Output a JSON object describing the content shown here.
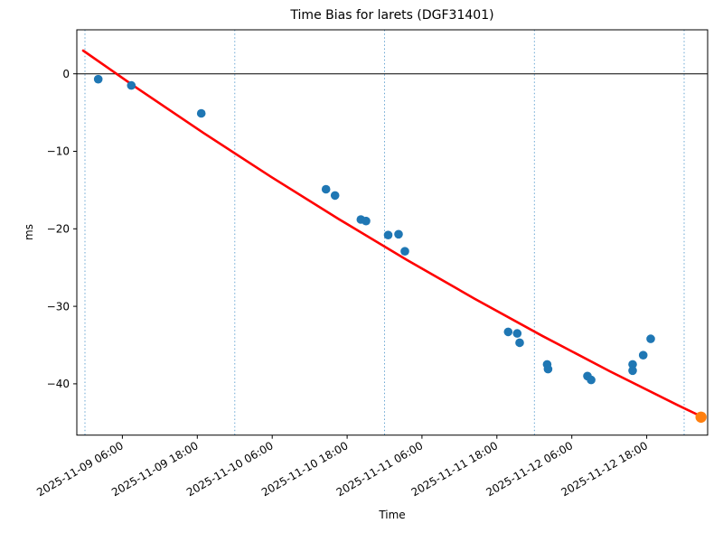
{
  "chart_data": {
    "type": "scatter",
    "title": "Time Bias for larets (DGF31401)",
    "xlabel": "Time",
    "ylabel": "ms",
    "grid": "vertical dotted lines at each midnight",
    "legend": "none",
    "colors": {
      "points": "#1f77b4",
      "latest_point": "#ff7f0e",
      "fit_line": "#ff0000",
      "gridline": "#5b9ecf",
      "zero_line": "#000000",
      "spine": "#000000"
    },
    "time_origin": "2025-11-09 00:00",
    "xlim_hours": [
      -1.3,
      99.75
    ],
    "ylim": [
      -46.6,
      5.7
    ],
    "zero_line_value": 0,
    "gridlines_hours": [
      0,
      24,
      48,
      72,
      96
    ],
    "x_ticks": [
      {
        "hours": 6,
        "label": "2025-11-09 06:00"
      },
      {
        "hours": 18,
        "label": "2025-11-09 18:00"
      },
      {
        "hours": 30,
        "label": "2025-11-10 06:00"
      },
      {
        "hours": 42,
        "label": "2025-11-10 18:00"
      },
      {
        "hours": 54,
        "label": "2025-11-11 06:00"
      },
      {
        "hours": 66,
        "label": "2025-11-11 18:00"
      },
      {
        "hours": 78,
        "label": "2025-11-12 06:00"
      },
      {
        "hours": 90,
        "label": "2025-11-12 18:00"
      }
    ],
    "y_ticks": [
      {
        "value": 0,
        "label": "0"
      },
      {
        "value": -10,
        "label": "−10"
      },
      {
        "value": -20,
        "label": "−20"
      },
      {
        "value": -30,
        "label": "−30"
      },
      {
        "value": -40,
        "label": "−40"
      }
    ],
    "points": [
      {
        "time": "2025-11-09 02:10",
        "t": 2.13,
        "ms": -0.7
      },
      {
        "time": "2025-11-09 07:25",
        "t": 7.43,
        "ms": -1.5
      },
      {
        "time": "2025-11-09 18:40",
        "t": 18.63,
        "ms": -5.1
      },
      {
        "time": "2025-11-10 14:40",
        "t": 38.62,
        "ms": -14.9
      },
      {
        "time": "2025-11-10 16:05",
        "t": 40.06,
        "ms": -15.7
      },
      {
        "time": "2025-11-10 20:15",
        "t": 44.21,
        "ms": -18.8
      },
      {
        "time": "2025-11-10 21:00",
        "t": 45.03,
        "ms": -19.0
      },
      {
        "time": "2025-11-11 00:35",
        "t": 48.58,
        "ms": -20.8
      },
      {
        "time": "2025-11-11 02:15",
        "t": 50.24,
        "ms": -20.7
      },
      {
        "time": "2025-11-11 03:15",
        "t": 51.26,
        "ms": -22.9
      },
      {
        "time": "2025-11-11 19:50",
        "t": 67.81,
        "ms": -33.3
      },
      {
        "time": "2025-11-11 21:15",
        "t": 69.26,
        "ms": -33.5
      },
      {
        "time": "2025-11-11 21:40",
        "t": 69.65,
        "ms": -34.7
      },
      {
        "time": "2025-11-12 02:05",
        "t": 74.05,
        "ms": -37.5
      },
      {
        "time": "2025-11-12 02:10",
        "t": 74.2,
        "ms": -38.1
      },
      {
        "time": "2025-11-12 08:30",
        "t": 80.5,
        "ms": -39.0
      },
      {
        "time": "2025-11-12 09:05",
        "t": 81.1,
        "ms": -39.5
      },
      {
        "time": "2025-11-12 15:45",
        "t": 87.75,
        "ms": -37.5
      },
      {
        "time": "2025-11-12 15:45",
        "t": 87.75,
        "ms": -38.3
      },
      {
        "time": "2025-11-12 17:25",
        "t": 89.44,
        "ms": -36.3
      },
      {
        "time": "2025-11-12 18:40",
        "t": 90.64,
        "ms": -34.2
      }
    ],
    "latest_point": {
      "time": "2025-11-13 02:40",
      "t": 98.7,
      "ms": -44.3
    },
    "fit_line": [
      {
        "t": -0.29,
        "ms": 3.0
      },
      {
        "t": 8.11,
        "ms": -1.71
      },
      {
        "t": 18.97,
        "ms": -7.62
      },
      {
        "t": 29.83,
        "ms": -13.3
      },
      {
        "t": 40.69,
        "ms": -18.75
      },
      {
        "t": 51.55,
        "ms": -24.0
      },
      {
        "t": 62.41,
        "ms": -29.01
      },
      {
        "t": 73.27,
        "ms": -33.81
      },
      {
        "t": 84.13,
        "ms": -38.39
      },
      {
        "t": 94.99,
        "ms": -42.76
      },
      {
        "t": 98.75,
        "ms": -44.21
      }
    ]
  }
}
